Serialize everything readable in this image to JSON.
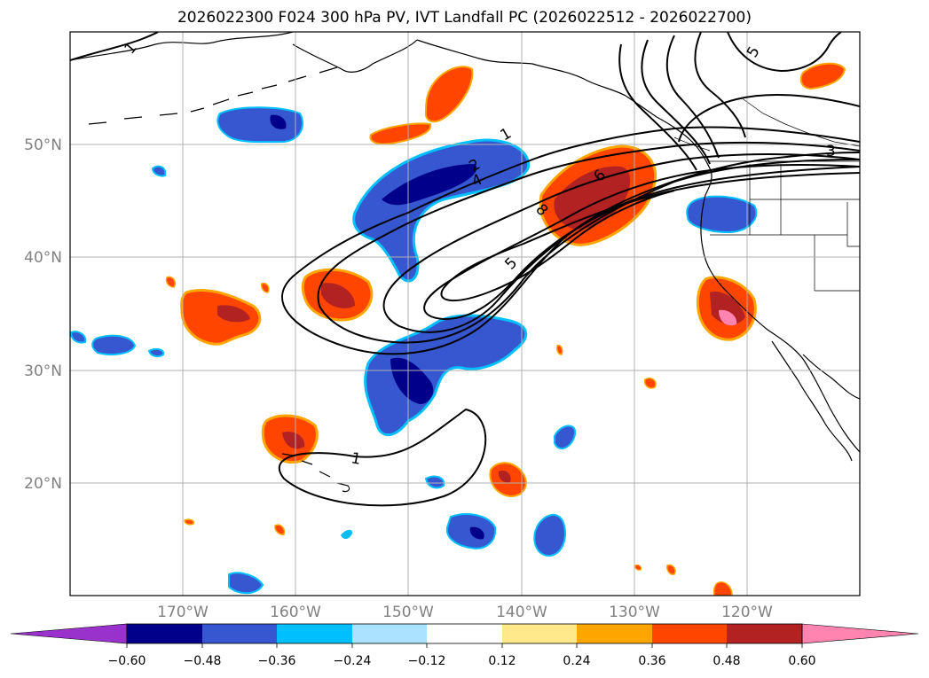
{
  "title": "2026022300 F024 300 hPa PV, IVT Landfall PC (2026022512 - 2026022700)",
  "map": {
    "projection": "PlateCarree",
    "lon_range": [
      -180,
      -110
    ],
    "lat_range": [
      10,
      60
    ],
    "lat_ticks": [
      {
        "value": 20,
        "label": "20°N"
      },
      {
        "value": 30,
        "label": "30°N"
      },
      {
        "value": 40,
        "label": "40°N"
      },
      {
        "value": 50,
        "label": "50°N"
      }
    ],
    "lon_ticks": [
      {
        "value": -170,
        "label": "170°W"
      },
      {
        "value": -160,
        "label": "160°W"
      },
      {
        "value": -150,
        "label": "150°W"
      },
      {
        "value": -140,
        "label": "140°W"
      },
      {
        "value": -130,
        "label": "130°W"
      },
      {
        "value": -120,
        "label": "120°W"
      }
    ],
    "gridlines": true
  },
  "colorbar": {
    "levels": [
      "−0.60",
      "−0.48",
      "−0.36",
      "−0.24",
      "−0.12",
      "0.12",
      "0.24",
      "0.36",
      "0.48",
      "0.60"
    ],
    "colors": [
      "#9932cc",
      "#00008b",
      "#3657cf",
      "#00bfff",
      "#aae2ff",
      "#ffffff",
      "#ffe98a",
      "#ffa500",
      "#ff4500",
      "#b22222",
      "#ff85b0"
    ],
    "extend": "both"
  },
  "contour_labels": [
    "1",
    "1",
    "2",
    "4",
    "5",
    "6",
    "8",
    "1",
    "5",
    "3"
  ],
  "colors": {
    "grid": "#b0b0b0",
    "contour": "#000000",
    "coast": "#000000"
  }
}
